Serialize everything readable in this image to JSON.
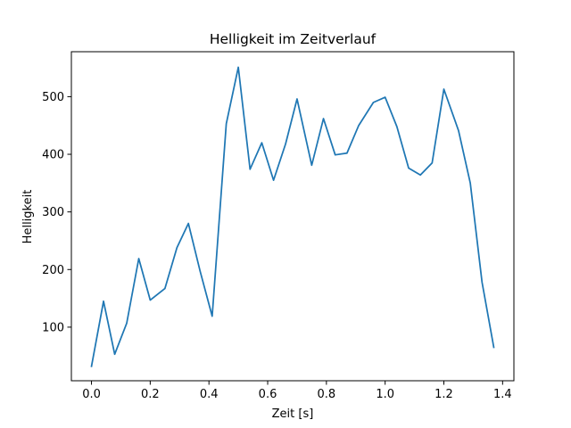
{
  "chart_data": {
    "type": "line",
    "title": "Helligkeit im Zeitverlauf",
    "xlabel": "Zeit [s]",
    "ylabel": "Helligkeit",
    "xlim": [
      -0.0685,
      1.4385
    ],
    "ylim": [
      7,
      578
    ],
    "xticks": [
      "0.0",
      "0.2",
      "0.4",
      "0.6",
      "0.8",
      "1.0",
      "1.2",
      "1.4"
    ],
    "yticks": [
      "100",
      "200",
      "300",
      "400",
      "500"
    ],
    "grid": false,
    "legend": "none",
    "series": [
      {
        "color": "#1f77b4",
        "x": [
          0.0,
          0.041,
          0.079,
          0.12,
          0.161,
          0.2,
          0.25,
          0.291,
          0.33,
          0.37,
          0.411,
          0.459,
          0.5,
          0.54,
          0.58,
          0.62,
          0.661,
          0.7,
          0.75,
          0.79,
          0.83,
          0.87,
          0.91,
          0.96,
          1.0,
          1.04,
          1.08,
          1.12,
          1.16,
          1.2,
          1.25,
          1.29,
          1.33,
          1.37
        ],
        "y": [
          32,
          145,
          53,
          107,
          219,
          147,
          167,
          238,
          280,
          197,
          119,
          453,
          551,
          374,
          420,
          355,
          418,
          496,
          381,
          462,
          399,
          402,
          450,
          490,
          499,
          448,
          376,
          364,
          385,
          513,
          441,
          350,
          178,
          65
        ]
      }
    ]
  }
}
